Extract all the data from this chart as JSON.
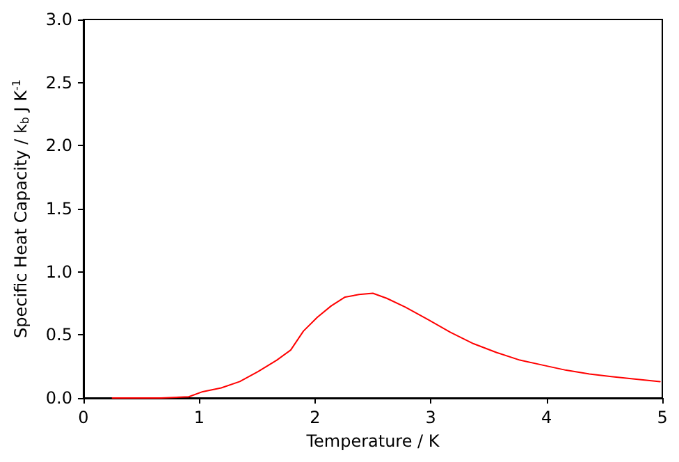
{
  "chart_data": {
    "type": "line",
    "xlabel": "Temperature / K",
    "ylabel": "Specific Heat Capacity / k$_{b}$ J K$^{-1}$",
    "x": [
      0.25,
      0.67,
      0.91,
      1.03,
      1.19,
      1.35,
      1.51,
      1.67,
      1.79,
      1.9,
      2.02,
      2.14,
      2.26,
      2.38,
      2.5,
      2.62,
      2.78,
      2.98,
      3.17,
      3.37,
      3.57,
      3.77,
      3.97,
      4.17,
      4.37,
      4.56,
      4.76,
      4.98
    ],
    "series": [
      {
        "color": "#ff0000",
        "values": [
          0,
          0,
          0.01,
          0.05,
          0.08,
          0.13,
          0.21,
          0.3,
          0.38,
          0.53,
          0.64,
          0.73,
          0.8,
          0.82,
          0.83,
          0.79,
          0.72,
          0.62,
          0.52,
          0.43,
          0.36,
          0.3,
          0.26,
          0.22,
          0.19,
          0.17,
          0.15,
          0.13
        ]
      }
    ],
    "xlim": [
      0,
      5
    ],
    "xticks": [
      0,
      1,
      2,
      3,
      4,
      5
    ],
    "ylim": [
      0,
      3
    ],
    "yticks": [
      {
        "value": 0,
        "label": "0.0"
      },
      {
        "value": 0.5,
        "label": "0.5"
      },
      {
        "value": 1,
        "label": "1.0"
      },
      {
        "value": 1.5,
        "label": "1.5"
      },
      {
        "value": 2,
        "label": "2.0"
      },
      {
        "value": 2.5,
        "label": "2.5"
      },
      {
        "value": 3,
        "label": "3.0"
      }
    ],
    "grid": false,
    "marker": "none",
    "line_style": "solid"
  }
}
